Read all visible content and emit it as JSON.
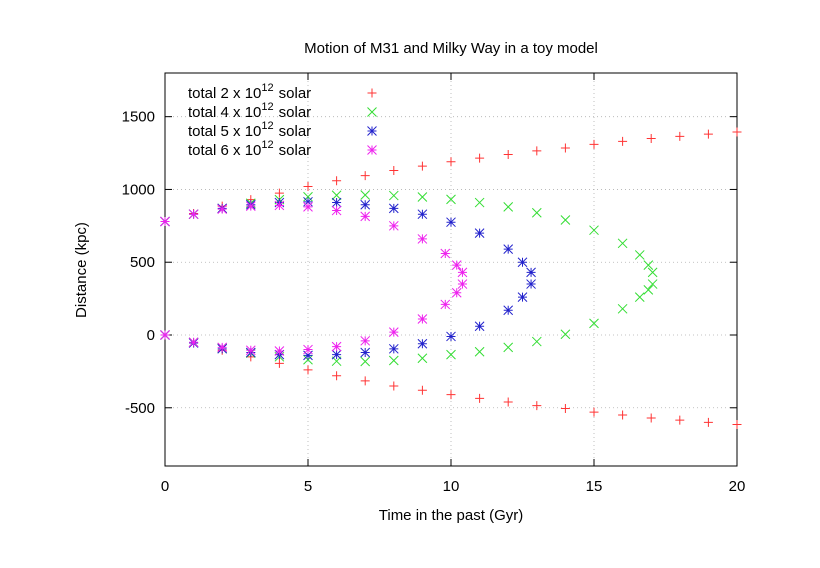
{
  "chart_data": {
    "type": "scatter",
    "title": "Motion of M31 and Milky Way in a toy model",
    "x_label": "Time in the past (Gyr)",
    "y_label": "Distance (kpc)",
    "xlim": [
      0,
      20
    ],
    "xticks": [
      0,
      5,
      10,
      15,
      20
    ],
    "ylim": [
      -900,
      1800
    ],
    "yticks": [
      -500,
      0,
      500,
      1000,
      1500
    ],
    "grid": true,
    "legend_position": "top-left",
    "series": [
      {
        "name": "total 2 x 10",
        "exponent": "12",
        "suffix": "solar",
        "color": "#ff3333",
        "marker": "plus",
        "x": [
          0,
          1,
          2,
          3,
          4,
          5,
          6,
          7,
          8,
          9,
          10,
          11,
          12,
          13,
          14,
          15,
          16,
          17,
          18,
          19,
          20,
          0,
          1,
          2,
          3,
          4,
          5,
          6,
          7,
          8,
          9,
          10,
          11,
          12,
          13,
          14,
          15,
          16,
          17,
          18,
          19,
          20
        ],
        "values": [
          780,
          835,
          885,
          930,
          975,
          1020,
          1060,
          1095,
          1130,
          1160,
          1190,
          1215,
          1240,
          1265,
          1285,
          1310,
          1330,
          1350,
          1365,
          1380,
          1395,
          0,
          -55,
          -105,
          -150,
          -195,
          -240,
          -280,
          -315,
          -350,
          -380,
          -410,
          -435,
          -460,
          -485,
          -505,
          -530,
          -550,
          -570,
          -585,
          -600,
          -615
        ]
      },
      {
        "name": "total 4 x 10",
        "exponent": "12",
        "suffix": "solar",
        "color": "#33dd33",
        "marker": "cross",
        "x": [
          0,
          1,
          2,
          3,
          4,
          5,
          6,
          7,
          8,
          9,
          10,
          11,
          12,
          13,
          14,
          15,
          16,
          16.6,
          16.9,
          17.05,
          0,
          1,
          2,
          3,
          4,
          5,
          6,
          7,
          8,
          9,
          10,
          11,
          12,
          13,
          14,
          15,
          16,
          16.6,
          16.9,
          17.05
        ],
        "values": [
          780,
          830,
          870,
          905,
          930,
          950,
          960,
          962,
          958,
          948,
          932,
          910,
          880,
          840,
          790,
          720,
          630,
          550,
          480,
          430,
          0,
          -50,
          -90,
          -125,
          -150,
          -170,
          -180,
          -182,
          -175,
          -160,
          -135,
          -115,
          -85,
          -45,
          5,
          80,
          180,
          260,
          310,
          350
        ]
      },
      {
        "name": "total 5 x 10",
        "exponent": "12",
        "suffix": "solar",
        "color": "#2222cc",
        "marker": "star",
        "x": [
          0,
          1,
          2,
          3,
          4,
          5,
          6,
          7,
          8,
          9,
          10,
          11,
          12,
          12.5,
          12.8,
          0,
          1,
          2,
          3,
          4,
          5,
          6,
          7,
          8,
          9,
          10,
          11,
          12,
          12.5,
          12.8
        ],
        "values": [
          780,
          830,
          870,
          895,
          910,
          915,
          910,
          895,
          870,
          830,
          775,
          700,
          590,
          500,
          430,
          0,
          -55,
          -95,
          -120,
          -135,
          -140,
          -135,
          -120,
          -95,
          -60,
          -10,
          60,
          170,
          260,
          350
        ]
      },
      {
        "name": "total 6 x 10",
        "exponent": "12",
        "suffix": "solar",
        "color": "#ee22ee",
        "marker": "star",
        "x": [
          0,
          1,
          2,
          3,
          4,
          5,
          6,
          7,
          8,
          9,
          9.8,
          10.2,
          10.4,
          0,
          1,
          2,
          3,
          4,
          5,
          6,
          7,
          8,
          9,
          9.8,
          10.2,
          10.4
        ],
        "values": [
          780,
          830,
          865,
          885,
          890,
          880,
          855,
          815,
          750,
          660,
          560,
          480,
          430,
          0,
          -50,
          -85,
          -105,
          -110,
          -100,
          -80,
          -40,
          20,
          110,
          210,
          290,
          350
        ]
      }
    ]
  }
}
